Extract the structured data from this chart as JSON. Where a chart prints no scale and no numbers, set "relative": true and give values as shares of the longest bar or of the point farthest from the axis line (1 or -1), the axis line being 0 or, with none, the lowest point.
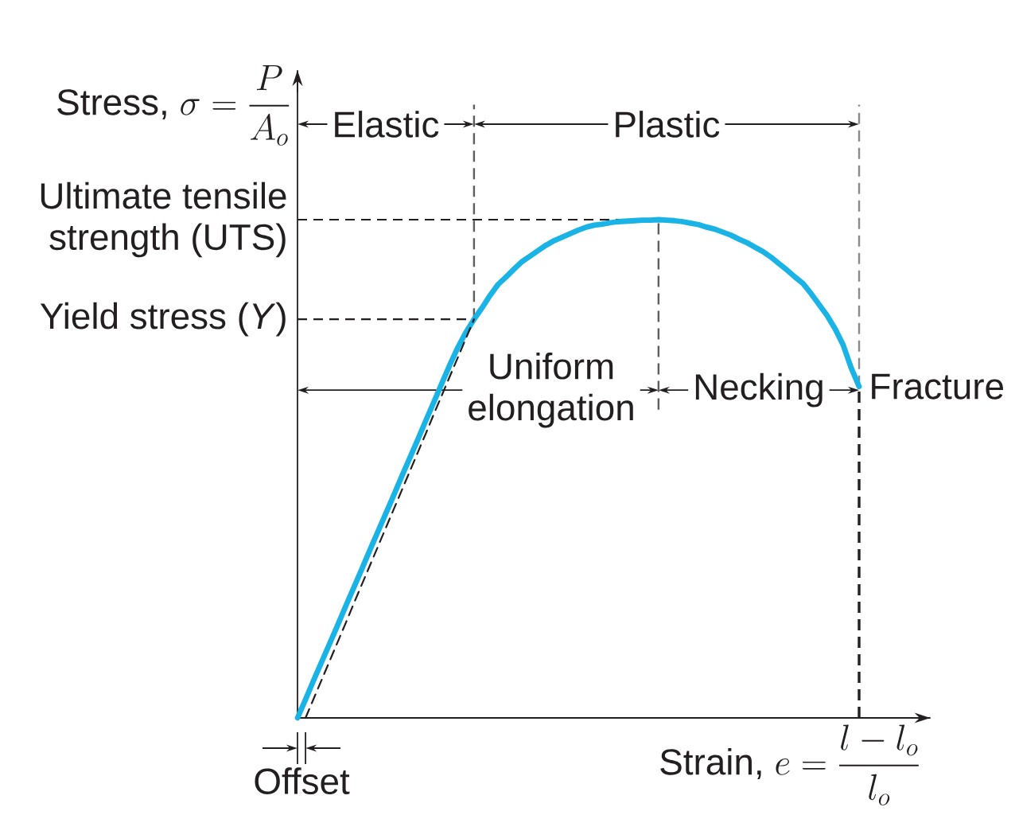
{
  "chart_data": {
    "type": "line",
    "relative": true,
    "xlabel": "\\text{Strain, } e = \\frac{l - l_o}{l_o}",
    "ylabel": "\\text{Stress, } \\sigma = \\frac{P}{A_o}",
    "tick_labels": false,
    "categories": [
      null,
      null,
      null,
      null,
      null,
      null,
      null,
      null,
      null,
      null,
      null,
      null,
      null,
      null,
      null,
      null,
      null,
      null,
      null,
      null,
      null,
      null,
      null,
      null,
      null,
      null,
      null,
      null,
      null,
      null,
      null,
      null,
      null,
      null,
      null,
      null,
      null,
      null,
      null,
      null,
      null,
      null,
      null,
      null,
      null,
      null,
      null,
      null,
      null,
      null,
      null,
      null,
      null,
      null,
      null,
      null,
      null,
      null,
      null,
      null,
      null,
      null,
      null,
      null,
      null,
      null,
      null,
      null,
      null,
      null,
      null
    ],
    "series": [
      {
        "color": "#1ab3e6",
        "values": [
          0,
          0.037,
          0.075,
          0.112,
          0.149,
          0.186,
          0.224,
          0.261,
          0.298,
          0.336,
          0.373,
          0.41,
          0.447,
          0.485,
          0.522,
          0.559,
          0.597,
          0.634,
          0.672,
          0.709,
          0.744,
          0.774,
          0.8,
          0.823,
          0.848,
          0.87,
          0.885,
          0.901,
          0.916,
          0.927,
          0.938,
          0.949,
          0.958,
          0.965,
          0.972,
          0.979,
          0.985,
          0.989,
          0.991,
          0.994,
          0.996,
          0.997,
          0.998,
          0.999,
          0.999,
          1.0,
          0.999,
          0.998,
          0.996,
          0.993,
          0.99,
          0.985,
          0.981,
          0.975,
          0.969,
          0.961,
          0.954,
          0.945,
          0.936,
          0.925,
          0.912,
          0.899,
          0.885,
          0.872,
          0.852,
          0.83,
          0.808,
          0.781,
          0.749,
          0.703,
          0.665
        ]
      },
      {
        "color": "#231f20",
        "line_style": "dashed",
        "values": [
          null,
          0,
          0.038,
          0.076,
          0.114,
          0.152,
          0.19,
          0.229,
          0.267,
          0.305,
          0.343,
          0.381,
          0.419,
          0.457,
          0.495,
          0.533,
          0.571,
          0.61,
          0.648,
          0.686,
          0.724,
          0.762,
          0.8,
          null,
          null,
          null,
          null,
          null,
          null,
          null,
          null,
          null,
          null,
          null,
          null,
          null,
          null,
          null,
          null,
          null,
          null,
          null,
          null,
          null,
          null,
          null,
          null,
          null,
          null,
          null,
          null,
          null,
          null,
          null,
          null,
          null,
          null,
          null,
          null,
          null,
          null,
          null,
          null,
          null,
          null,
          null,
          null,
          null,
          null,
          null,
          null
        ]
      }
    ],
    "ref_lines": [
      {
        "axis": "y",
        "value": 1.0,
        "label": "Ultimate tensile strength (UTS)",
        "line_style": "dashed"
      },
      {
        "axis": "y",
        "value": 0.8,
        "label": "Yield stress (*Y*)",
        "line_style": "dashed"
      }
    ],
    "annotations": [
      "Elastic",
      "Plastic",
      "Uniform elongation",
      "Necking",
      "Offset",
      "Fracture"
    ]
  }
}
